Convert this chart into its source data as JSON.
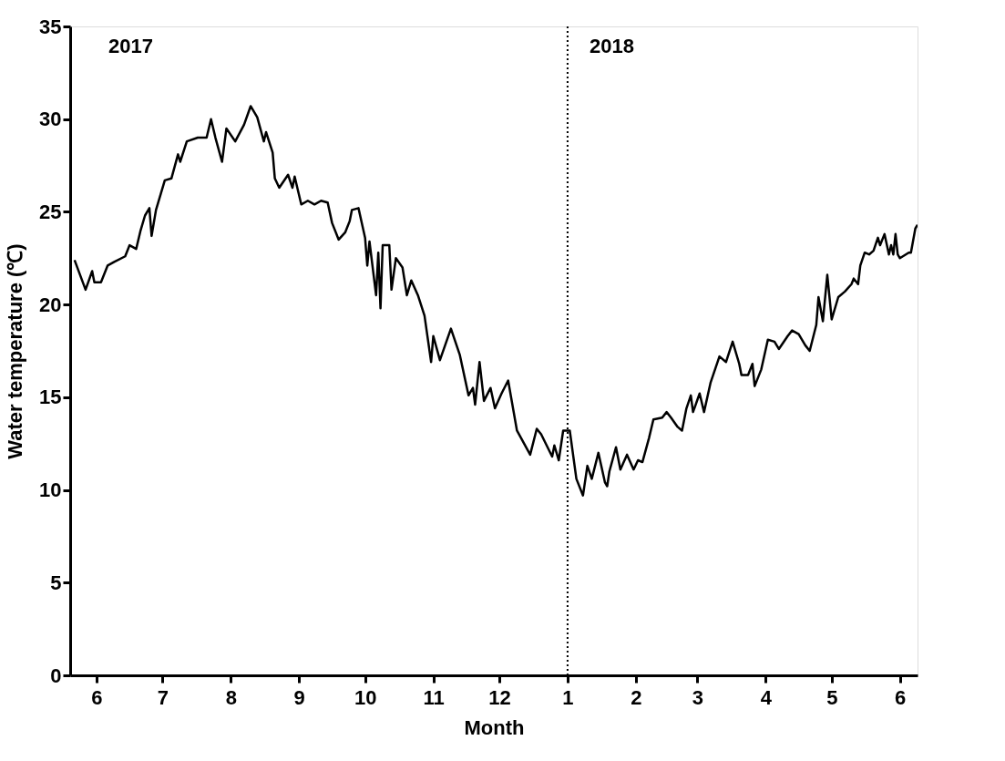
{
  "chart_data": {
    "type": "line",
    "xlabel": "Month",
    "ylabel": "Water temperature (℃)",
    "x": [
      "2017-05-22",
      "2017-05-27",
      "2017-05-30",
      "2017-05-31",
      "2017-06-03",
      "2017-06-06",
      "2017-06-09",
      "2017-06-14",
      "2017-06-16",
      "2017-06-19",
      "2017-06-21",
      "2017-06-23",
      "2017-06-25",
      "2017-06-26",
      "2017-06-28",
      "2017-07-02",
      "2017-07-05",
      "2017-07-08",
      "2017-07-09",
      "2017-07-12",
      "2017-07-17",
      "2017-07-21",
      "2017-07-23",
      "2017-07-25",
      "2017-07-28",
      "2017-07-30",
      "2017-08-03",
      "2017-08-07",
      "2017-08-10",
      "2017-08-13",
      "2017-08-16",
      "2017-08-17",
      "2017-08-20",
      "2017-08-21",
      "2017-08-23",
      "2017-08-27",
      "2017-08-29",
      "2017-08-30",
      "2017-09-02",
      "2017-09-05",
      "2017-09-08",
      "2017-09-11",
      "2017-09-14",
      "2017-09-16",
      "2017-09-19",
      "2017-09-22",
      "2017-09-24",
      "2017-09-25",
      "2017-09-28",
      "2017-10-01",
      "2017-10-02",
      "2017-10-03",
      "2017-10-06",
      "2017-10-07",
      "2017-10-08",
      "2017-10-09",
      "2017-10-12",
      "2017-10-13",
      "2017-10-15",
      "2017-10-18",
      "2017-10-20",
      "2017-10-22",
      "2017-10-25",
      "2017-10-28",
      "2017-10-31",
      "2017-11-01",
      "2017-11-04",
      "2017-11-09",
      "2017-11-13",
      "2017-11-17",
      "2017-11-19",
      "2017-11-20",
      "2017-11-22",
      "2017-11-24",
      "2017-11-27",
      "2017-11-29",
      "2017-12-02",
      "2017-12-05",
      "2017-12-09",
      "2017-12-15",
      "2017-12-18",
      "2017-12-20",
      "2017-12-25",
      "2017-12-26",
      "2017-12-28",
      "2017-12-30",
      "2018-01-02",
      "2018-01-05",
      "2018-01-08",
      "2018-01-10",
      "2018-01-12",
      "2018-01-15",
      "2018-01-18",
      "2018-01-19",
      "2018-01-20",
      "2018-01-23",
      "2018-01-25",
      "2018-01-28",
      "2018-01-31",
      "2018-02-02",
      "2018-02-04",
      "2018-02-07",
      "2018-02-09",
      "2018-02-13",
      "2018-02-15",
      "2018-02-17",
      "2018-02-20",
      "2018-02-22",
      "2018-02-24",
      "2018-02-26",
      "2018-02-27",
      "2018-03-02",
      "2018-03-04",
      "2018-03-07",
      "2018-03-11",
      "2018-03-14",
      "2018-03-17",
      "2018-03-20",
      "2018-03-21",
      "2018-03-24",
      "2018-03-26",
      "2018-03-27",
      "2018-03-30",
      "2018-04-02",
      "2018-04-05",
      "2018-04-07",
      "2018-04-11",
      "2018-04-13",
      "2018-04-16",
      "2018-04-19",
      "2018-04-21",
      "2018-04-24",
      "2018-04-25",
      "2018-04-27",
      "2018-04-29",
      "2018-05-01",
      "2018-05-04",
      "2018-05-07",
      "2018-05-10",
      "2018-05-11",
      "2018-05-13",
      "2018-05-14",
      "2018-05-16",
      "2018-05-18",
      "2018-05-20",
      "2018-05-22",
      "2018-05-23",
      "2018-05-25",
      "2018-05-27",
      "2018-05-28",
      "2018-05-29",
      "2018-05-30",
      "2018-05-31",
      "2018-06-01",
      "2018-06-05",
      "2018-06-06",
      "2018-06-08",
      "2018-06-09"
    ],
    "series": [
      {
        "color": "#000000",
        "values": [
          22.4,
          20.8,
          21.8,
          21.2,
          21.2,
          22.1,
          22.3,
          22.6,
          23.2,
          23.0,
          24.0,
          24.8,
          25.2,
          23.7,
          25.1,
          26.7,
          26.8,
          28.1,
          27.7,
          28.8,
          29.0,
          29.0,
          30.0,
          29.0,
          27.7,
          29.5,
          28.8,
          29.7,
          30.7,
          30.1,
          28.8,
          29.3,
          28.2,
          26.8,
          26.3,
          27.0,
          26.3,
          26.9,
          25.4,
          25.6,
          25.4,
          25.6,
          25.5,
          24.4,
          23.5,
          23.9,
          24.5,
          25.1,
          25.2,
          23.6,
          22.1,
          23.4,
          20.5,
          22.8,
          19.8,
          23.2,
          23.2,
          20.8,
          22.5,
          22.0,
          20.5,
          21.3,
          20.5,
          19.4,
          16.9,
          18.3,
          17.0,
          18.7,
          17.3,
          15.1,
          15.5,
          14.6,
          16.9,
          14.8,
          15.5,
          14.4,
          15.2,
          15.9,
          13.2,
          11.9,
          13.3,
          13.0,
          11.8,
          12.4,
          11.6,
          13.2,
          13.2,
          10.6,
          9.7,
          11.3,
          10.6,
          12.0,
          10.4,
          10.2,
          11.0,
          12.3,
          11.1,
          11.9,
          11.1,
          11.6,
          11.5,
          12.8,
          13.8,
          13.9,
          14.2,
          13.9,
          13.4,
          13.2,
          14.4,
          15.1,
          14.2,
          15.2,
          14.2,
          15.8,
          17.2,
          16.9,
          18.0,
          16.8,
          16.2,
          16.2,
          16.8,
          15.6,
          16.5,
          18.1,
          18.0,
          17.6,
          18.3,
          18.6,
          18.4,
          17.8,
          17.5,
          18.9,
          20.4,
          19.1,
          21.6,
          19.2,
          20.4,
          20.7,
          21.1,
          21.4,
          21.1,
          22.1,
          22.8,
          22.7,
          22.9,
          23.6,
          23.2,
          23.8,
          22.7,
          23.2,
          22.7,
          23.8,
          22.7,
          22.5,
          22.8,
          22.8,
          24.1,
          24.3
        ]
      }
    ],
    "xlim": [
      "2017-05-20",
      "2018-06-09"
    ],
    "xticks": [
      {
        "value": "2017-06-01",
        "label": "6"
      },
      {
        "value": "2017-07-01",
        "label": "7"
      },
      {
        "value": "2017-08-01",
        "label": "8"
      },
      {
        "value": "2017-09-01",
        "label": "9"
      },
      {
        "value": "2017-10-01",
        "label": "10"
      },
      {
        "value": "2017-11-01",
        "label": "11"
      },
      {
        "value": "2017-12-01",
        "label": "12"
      },
      {
        "value": "2018-01-01",
        "label": "1"
      },
      {
        "value": "2018-02-01",
        "label": "2"
      },
      {
        "value": "2018-03-01",
        "label": "3"
      },
      {
        "value": "2018-04-01",
        "label": "4"
      },
      {
        "value": "2018-05-01",
        "label": "5"
      },
      {
        "value": "2018-06-01",
        "label": "6"
      }
    ],
    "ylim": [
      0,
      35
    ],
    "yticks": [
      0,
      5,
      10,
      15,
      20,
      25,
      30,
      35
    ],
    "ref_lines": [
      {
        "axis": "x",
        "value": "2018-01-01",
        "line_style": "dotted",
        "color": "#000000"
      }
    ],
    "annotations": [
      "2017",
      "2018"
    ],
    "grid": false,
    "marker": "none",
    "line_style": "solid"
  }
}
